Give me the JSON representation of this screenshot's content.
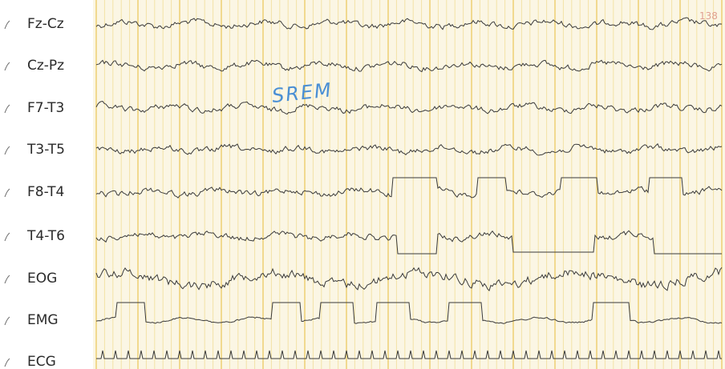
{
  "channels": [
    "Fz-Cz",
    "Cz-Pz",
    "F7-T3",
    "T3-T5",
    "F8-T4",
    "T4-T6",
    "EOG",
    "EMG",
    "ECG"
  ],
  "annotation": "SREM",
  "page_number": "138"
}
